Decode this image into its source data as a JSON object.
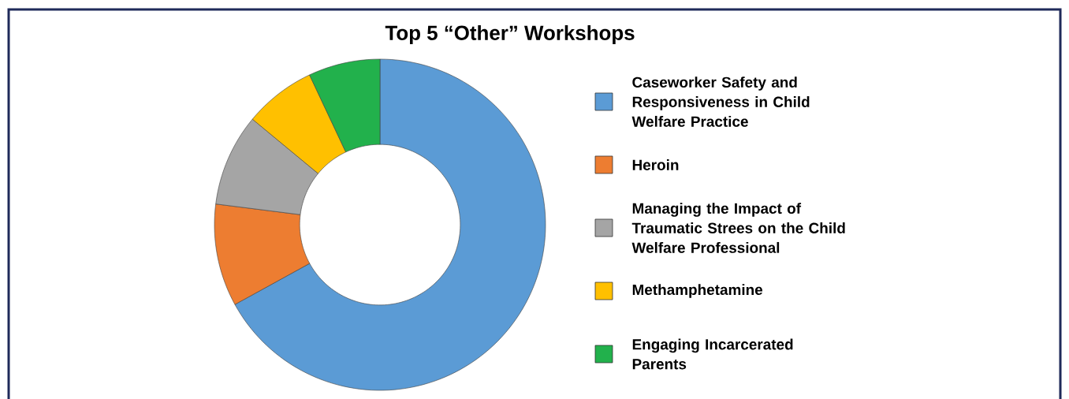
{
  "chart_data": {
    "type": "donut",
    "title": "Top 5 “Other” Workshops",
    "categories": [
      "Caseworker Safety and Responsiveness in Child Welfare Practice",
      "Heroin",
      "Managing the Impact of Traumatic Strees on the Child Welfare Professional",
      "Methamphetamine",
      "Engaging Incarcerated Parents"
    ],
    "values": [
      67,
      10,
      9,
      7,
      7
    ],
    "colors": [
      "#5b9bd5",
      "#ed7d31",
      "#a5a5a5",
      "#ffc000",
      "#22b14c"
    ],
    "legend": "right"
  }
}
